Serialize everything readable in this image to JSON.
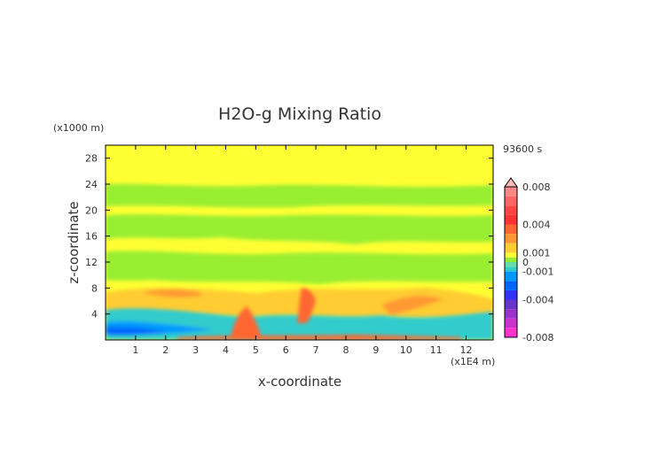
{
  "chart_data": {
    "type": "heatmap",
    "title": "H2O-g Mixing Ratio",
    "time_label": "93600 s",
    "xlabel": "x-coordinate",
    "ylabel": "z-coordinate",
    "x_unit": "(x1E4 m)",
    "y_unit": "(x1000 m)",
    "xlim": [
      0,
      12.9
    ],
    "ylim": [
      0,
      30
    ],
    "x_ticks": [
      "1",
      "2",
      "3",
      "4",
      "5",
      "6",
      "7",
      "8",
      "9",
      "10",
      "11",
      "12"
    ],
    "y_ticks": [
      "4",
      "8",
      "12",
      "16",
      "20",
      "24",
      "28"
    ],
    "colorbar": {
      "labels": [
        "0.008",
        "0.004",
        "0.001",
        "0",
        "-0.001",
        "-0.004",
        "-0.008"
      ],
      "levels": [
        -0.008,
        -0.007,
        -0.006,
        -0.005,
        -0.004,
        -0.003,
        -0.002,
        -0.001,
        -0.0005,
        0,
        0.0005,
        0.001,
        0.002,
        0.003,
        0.004,
        0.005,
        0.006,
        0.007,
        0.008
      ],
      "colors": [
        "#ff33cc",
        "#cc33cc",
        "#9933cc",
        "#6633cc",
        "#3333ff",
        "#0066ff",
        "#0099ff",
        "#33cccc",
        "#66ddaa",
        "#99ee33",
        "#ffff33",
        "#ffcc33",
        "#ff9933",
        "#ff6633",
        "#ff3333",
        "#ff4444",
        "#ff6666",
        "#ff8888",
        "#ffbbbb"
      ],
      "extend": "max"
    },
    "background_value": 0.0003,
    "regions": [
      {
        "desc": "upper yellow",
        "value": 0.0003
      },
      {
        "desc": "green band z~21-24",
        "value": -0.0002
      },
      {
        "desc": "green band z~15-20",
        "value": -0.0002
      },
      {
        "desc": "green band z~9-13",
        "value": -0.0002
      },
      {
        "desc": "orange layer z~5-8",
        "value": 0.0015
      },
      {
        "desc": "cyan/blue near-surface z~0-4",
        "value": -0.001
      },
      {
        "desc": "red plume x~4.3-4.8",
        "value": 0.003
      },
      {
        "desc": "red plume x~6.3-6.9",
        "value": 0.003
      }
    ]
  }
}
